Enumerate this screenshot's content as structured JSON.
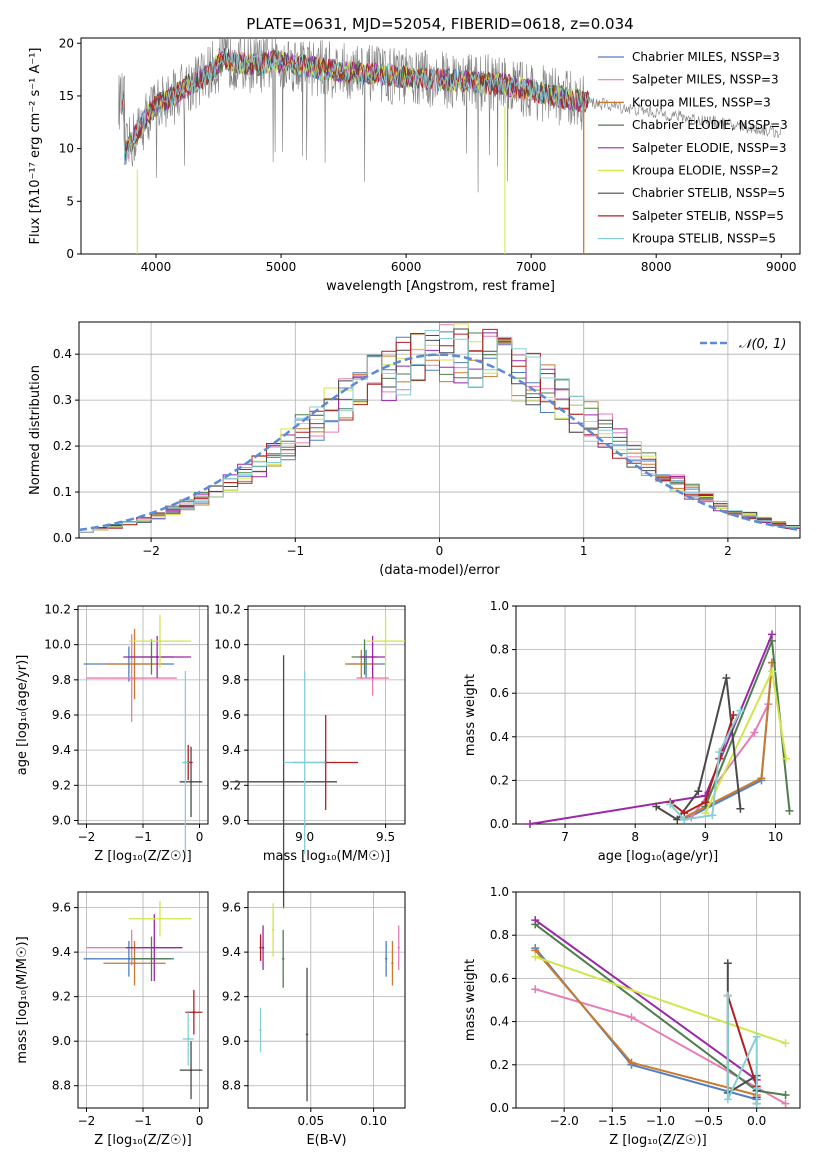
{
  "figure_title": "PLATE=0631, MJD=52054, FIBERID=0618, z=0.034",
  "colors": {
    "chabrier_miles": "#4f7fc0",
    "salpeter_miles": "#e67db5",
    "kroupa_miles": "#c97a2e",
    "chabrier_elodie": "#4e7d4e",
    "salpeter_elodie": "#9b28a9",
    "kroupa_elodie": "#d0e64a",
    "chabrier_stelib": "#4a4a4a",
    "salpeter_stelib": "#b02020",
    "kroupa_stelib": "#87cfd6",
    "observed": "#808080",
    "normal_curve": "#5b8ad6",
    "grid": "#b0b0b0"
  },
  "chart_data": [
    {
      "type": "line",
      "panel": "spectrum",
      "title": "PLATE=0631, MJD=52054, FIBERID=0618, z=0.034",
      "xlabel": "wavelength [Angstrom, rest frame]",
      "ylabel": "Flux [fλ10⁻¹⁷ erg cm⁻² s⁻¹ A⁻¹]",
      "xlim": [
        3400,
        9150
      ],
      "ylim": [
        0,
        20.5
      ],
      "xticks": [
        4000,
        5000,
        6000,
        7000,
        8000,
        9000
      ],
      "yticks": [
        0,
        5,
        10,
        15,
        20
      ],
      "legend_position": "top-right",
      "legend": [
        "Chabrier MILES, NSSP=3",
        "Salpeter MILES, NSSP=3",
        "Kroupa MILES, NSSP=3",
        "Chabrier ELODIE, NSSP=3",
        "Salpeter ELODIE, NSSP=3",
        "Kroupa ELODIE, NSSP=2",
        "Chabrier STELIB, NSSP=5",
        "Salpeter STELIB, NSSP=5",
        "Kroupa STELIB, NSSP=5"
      ],
      "model_continuum": {
        "x": [
          3750,
          3850,
          3950,
          4050,
          4150,
          4250,
          4350,
          4450,
          4550,
          4650,
          4750,
          4850,
          4950,
          5050,
          5200,
          5400,
          5600,
          5800,
          6000,
          6200,
          6400,
          6600,
          6800,
          7000,
          7200,
          7400
        ],
        "y": [
          9.5,
          11.5,
          13.5,
          14.5,
          15.0,
          16.0,
          16.5,
          17.5,
          18.5,
          18.2,
          18.0,
          18.0,
          18.3,
          18.2,
          17.8,
          17.5,
          17.2,
          17.0,
          16.8,
          16.6,
          16.5,
          16.3,
          16.0,
          15.5,
          15.0,
          14.5
        ]
      },
      "observed_extension": {
        "x": [
          7500,
          7800,
          8000,
          8200,
          8400,
          8600,
          8800,
          9000
        ],
        "y": [
          14.5,
          14.0,
          13.6,
          13.2,
          12.8,
          12.4,
          12.0,
          11.5
        ]
      }
    },
    {
      "type": "line",
      "panel": "residual_distribution",
      "xlabel": "(data-model)/error",
      "ylabel": "Normed distribution",
      "xlim": [
        -2.5,
        2.5
      ],
      "ylim": [
        0,
        0.47
      ],
      "xticks": [
        -2,
        -1,
        0,
        1,
        2
      ],
      "yticks": [
        0.0,
        0.1,
        0.2,
        0.3,
        0.4
      ],
      "grid": true,
      "legend_position": "top-right",
      "legend": [
        "𝒩(0, 1)"
      ]
    },
    {
      "type": "scatter",
      "panel": "age_vs_metallicity",
      "xlabel": "Z [log₁₀(Z/Z☉)]",
      "ylabel": "age  [log₁₀(age/yr)]",
      "xlim": [
        -2.15,
        0.15
      ],
      "ylim": [
        8.98,
        10.22
      ],
      "xticks": [
        -2,
        -1,
        0
      ],
      "yticks": [
        9.0,
        9.2,
        9.4,
        9.6,
        9.8,
        10.0,
        10.2
      ],
      "grid": true,
      "series": [
        {
          "color": "chabrier_miles",
          "x": -1.25,
          "xerr": 0.8,
          "y": 9.89,
          "yerr": 0.1
        },
        {
          "color": "salpeter_miles",
          "x": -1.2,
          "xerr": 0.8,
          "y": 9.81,
          "yerr": 0.25
        },
        {
          "color": "kroupa_miles",
          "x": -1.15,
          "xerr": 0.5,
          "y": 9.89,
          "yerr": 0.2
        },
        {
          "color": "chabrier_elodie",
          "x": -0.85,
          "xerr": 0.4,
          "y": 9.93,
          "yerr": 0.1
        },
        {
          "color": "salpeter_elodie",
          "x": -0.75,
          "xerr": 0.6,
          "y": 9.93,
          "yerr": 0.12
        },
        {
          "color": "kroupa_elodie",
          "x": -0.7,
          "xerr": 0.55,
          "y": 10.02,
          "yerr": 0.15
        },
        {
          "color": "chabrier_stelib",
          "x": -0.15,
          "xerr": 0.2,
          "y": 9.22,
          "yerr": 0.2
        },
        {
          "color": "salpeter_stelib",
          "x": -0.2,
          "xerr": 0.08,
          "y": 9.33,
          "yerr": 0.1
        },
        {
          "color": "kroupa_stelib",
          "x": -0.25,
          "xerr": 0.06,
          "y": 9.33,
          "yerr": 0.52
        }
      ]
    },
    {
      "type": "scatter",
      "panel": "age_vs_mass",
      "xlabel": "mass [log₁₀(M/M☉)]",
      "ylabel": "",
      "xlim": [
        8.65,
        9.62
      ],
      "ylim": [
        8.98,
        10.22
      ],
      "xticks": [
        9.0,
        9.5
      ],
      "yticks": [
        9.0,
        9.2,
        9.4,
        9.6,
        9.8,
        10.0,
        10.2
      ],
      "grid": true,
      "series": [
        {
          "color": "chabrier_miles",
          "x": 9.38,
          "xerr": 0.12,
          "y": 9.89,
          "yerr": 0.08
        },
        {
          "color": "salpeter_miles",
          "x": 9.42,
          "xerr": 0.1,
          "y": 9.81,
          "yerr": 0.1
        },
        {
          "color": "kroupa_miles",
          "x": 9.35,
          "xerr": 0.1,
          "y": 9.89,
          "yerr": 0.08
        },
        {
          "color": "chabrier_elodie",
          "x": 9.37,
          "xerr": 0.08,
          "y": 9.93,
          "yerr": 0.1
        },
        {
          "color": "salpeter_elodie",
          "x": 9.42,
          "xerr": 0.08,
          "y": 9.93,
          "yerr": 0.12
        },
        {
          "color": "kroupa_elodie",
          "x": 9.5,
          "xerr": 0.12,
          "y": 10.02,
          "yerr": 0.15
        },
        {
          "color": "chabrier_stelib",
          "x": 8.87,
          "xerr": 0.33,
          "y": 9.22,
          "yerr": 0.72
        },
        {
          "color": "salpeter_stelib",
          "x": 9.13,
          "xerr": 0.2,
          "y": 9.33,
          "yerr": 0.27
        },
        {
          "color": "kroupa_stelib",
          "x": 9.0,
          "xerr": 0.13,
          "y": 9.33,
          "yerr": 0.52
        }
      ]
    },
    {
      "type": "line",
      "panel": "weight_vs_age",
      "xlabel": "age  [log₁₀(age/yr)]",
      "ylabel": "mass weight",
      "xlim": [
        6.3,
        10.35
      ],
      "ylim": [
        0,
        1
      ],
      "xticks": [
        7,
        8,
        9,
        10
      ],
      "yticks": [
        0.0,
        0.2,
        0.4,
        0.6,
        0.8,
        1.0
      ],
      "grid": true,
      "series": [
        {
          "color": "chabrier_miles",
          "x": [
            8.7,
            9.8,
            9.95
          ],
          "y": [
            0.02,
            0.2,
            0.74
          ]
        },
        {
          "color": "salpeter_miles",
          "x": [
            8.8,
            9.7,
            9.9
          ],
          "y": [
            0.03,
            0.42,
            0.55
          ]
        },
        {
          "color": "kroupa_miles",
          "x": [
            8.7,
            9.8,
            9.95
          ],
          "y": [
            0.03,
            0.21,
            0.74
          ]
        },
        {
          "color": "chabrier_elodie",
          "x": [
            9.0,
            9.95,
            10.2
          ],
          "y": [
            0.08,
            0.84,
            0.06
          ]
        },
        {
          "color": "salpeter_elodie",
          "x": [
            6.5,
            9.0,
            9.95
          ],
          "y": [
            0.0,
            0.13,
            0.87
          ]
        },
        {
          "color": "kroupa_elodie",
          "x": [
            9.0,
            9.95,
            10.15
          ],
          "y": [
            0.05,
            0.7,
            0.3
          ]
        },
        {
          "color": "chabrier_stelib",
          "x": [
            8.3,
            8.6,
            8.9,
            9.3,
            9.5
          ],
          "y": [
            0.08,
            0.02,
            0.15,
            0.67,
            0.07
          ]
        },
        {
          "color": "salpeter_stelib",
          "x": [
            8.5,
            8.7,
            9.0,
            9.2,
            9.4
          ],
          "y": [
            0.1,
            0.05,
            0.1,
            0.3,
            0.5
          ]
        },
        {
          "color": "kroupa_stelib",
          "x": [
            8.5,
            8.7,
            9.1,
            9.2,
            9.5
          ],
          "y": [
            0.09,
            0.02,
            0.04,
            0.33,
            0.52
          ]
        }
      ]
    },
    {
      "type": "scatter",
      "panel": "mass_vs_metallicity",
      "xlabel": "Z [log₁₀(Z/Z☉)]",
      "ylabel": "mass [log₁₀(M/M☉)]",
      "xlim": [
        -2.15,
        0.15
      ],
      "ylim": [
        8.7,
        9.67
      ],
      "xticks": [
        -2,
        -1,
        0
      ],
      "yticks": [
        8.8,
        9.0,
        9.2,
        9.4,
        9.6
      ],
      "grid": true,
      "series": [
        {
          "color": "chabrier_miles",
          "x": -1.25,
          "xerr": 0.8,
          "y": 9.37,
          "yerr": 0.08
        },
        {
          "color": "salpeter_miles",
          "x": -1.2,
          "xerr": 0.8,
          "y": 9.42,
          "yerr": 0.08
        },
        {
          "color": "kroupa_miles",
          "x": -1.15,
          "xerr": 0.55,
          "y": 9.35,
          "yerr": 0.1
        },
        {
          "color": "chabrier_elodie",
          "x": -0.85,
          "xerr": 0.35,
          "y": 9.37,
          "yerr": 0.1
        },
        {
          "color": "salpeter_elodie",
          "x": -0.8,
          "xerr": 0.5,
          "y": 9.42,
          "yerr": 0.15
        },
        {
          "color": "kroupa_elodie",
          "x": -0.7,
          "xerr": 0.55,
          "y": 9.55,
          "yerr": 0.08
        },
        {
          "color": "chabrier_stelib",
          "x": -0.15,
          "xerr": 0.2,
          "y": 8.87,
          "yerr": 0.13
        },
        {
          "color": "salpeter_stelib",
          "x": -0.1,
          "xerr": 0.15,
          "y": 9.13,
          "yerr": 0.1
        },
        {
          "color": "kroupa_stelib",
          "x": -0.2,
          "xerr": 0.1,
          "y": 9.01,
          "yerr": 0.12
        }
      ]
    },
    {
      "type": "scatter",
      "panel": "mass_vs_reddening",
      "xlabel": "E(B-V)",
      "ylabel": "",
      "xlim": [
        0.0,
        0.125
      ],
      "ylim": [
        8.7,
        9.67
      ],
      "xticks": [
        0.05,
        0.1
      ],
      "yticks": [
        8.8,
        9.0,
        9.2,
        9.4,
        9.6
      ],
      "grid": true,
      "series": [
        {
          "color": "chabrier_miles",
          "x": 0.11,
          "y": 9.37,
          "yerr": 0.08
        },
        {
          "color": "salpeter_miles",
          "x": 0.12,
          "y": 9.42,
          "yerr": 0.1
        },
        {
          "color": "kroupa_miles",
          "x": 0.115,
          "y": 9.35,
          "yerr": 0.1
        },
        {
          "color": "chabrier_elodie",
          "x": 0.028,
          "y": 9.37,
          "yerr": 0.13
        },
        {
          "color": "salpeter_elodie",
          "x": 0.012,
          "y": 9.42,
          "yerr": 0.1
        },
        {
          "color": "kroupa_elodie",
          "x": 0.02,
          "y": 9.5,
          "yerr": 0.12
        },
        {
          "color": "chabrier_stelib",
          "x": 0.047,
          "y": 9.03,
          "yerr": 0.3
        },
        {
          "color": "salpeter_stelib",
          "x": 0.01,
          "y": 9.42,
          "yerr": 0.06
        },
        {
          "color": "kroupa_stelib",
          "x": 0.01,
          "y": 9.05,
          "yerr": 0.1
        }
      ]
    },
    {
      "type": "line",
      "panel": "weight_vs_metallicity",
      "xlabel": "Z [log₁₀(Z/Z☉)]",
      "ylabel": "mass weight",
      "xlim": [
        -2.5,
        0.45
      ],
      "ylim": [
        0,
        1
      ],
      "xticks": [
        -2.0,
        -1.5,
        -1.0,
        -0.5,
        0.0
      ],
      "yticks": [
        0.0,
        0.2,
        0.4,
        0.6,
        0.8,
        1.0
      ],
      "grid": true,
      "series": [
        {
          "color": "chabrier_miles",
          "x": [
            -2.3,
            -1.3,
            0.0
          ],
          "y": [
            0.74,
            0.2,
            0.04
          ]
        },
        {
          "color": "salpeter_miles",
          "x": [
            -2.3,
            -1.3,
            0.3
          ],
          "y": [
            0.55,
            0.42,
            0.02
          ]
        },
        {
          "color": "kroupa_miles",
          "x": [
            -2.3,
            -1.3,
            0.0
          ],
          "y": [
            0.73,
            0.21,
            0.06
          ]
        },
        {
          "color": "chabrier_elodie",
          "x": [
            -2.3,
            0.0,
            0.3
          ],
          "y": [
            0.85,
            0.08,
            0.06
          ]
        },
        {
          "color": "salpeter_elodie",
          "x": [
            -2.3,
            0.0
          ],
          "y": [
            0.87,
            0.13
          ]
        },
        {
          "color": "kroupa_elodie",
          "x": [
            -2.3,
            0.3
          ],
          "y": [
            0.7,
            0.3
          ]
        },
        {
          "color": "chabrier_stelib",
          "x": [
            -0.3,
            -0.3,
            0.0,
            0.0,
            0.0
          ],
          "y": [
            0.67,
            0.07,
            0.15,
            0.08,
            0.02
          ]
        },
        {
          "color": "salpeter_stelib",
          "x": [
            -0.3,
            0.0,
            0.0
          ],
          "y": [
            0.52,
            0.1,
            0.05
          ]
        },
        {
          "color": "kroupa_stelib",
          "x": [
            -0.3,
            -0.3,
            0.0,
            0.0,
            0.0
          ],
          "y": [
            0.52,
            0.04,
            0.33,
            0.09,
            0.02
          ]
        }
      ]
    }
  ]
}
